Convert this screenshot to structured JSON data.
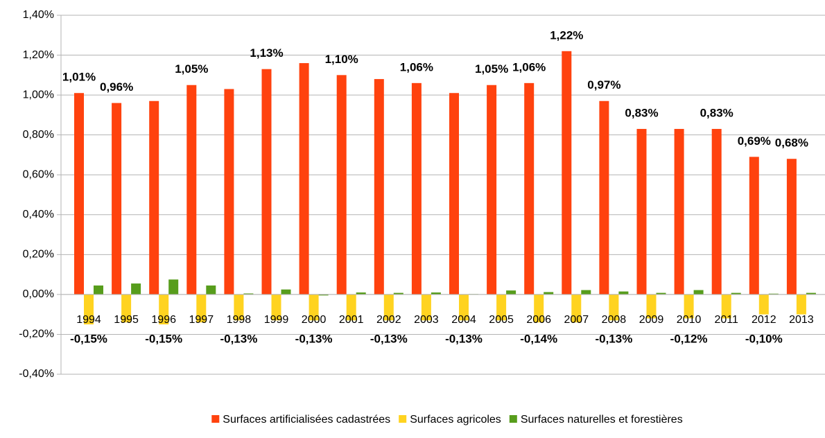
{
  "chart_data": {
    "type": "bar",
    "categories": [
      "1994",
      "1995",
      "1996",
      "1997",
      "1998",
      "1999",
      "2000",
      "2001",
      "2002",
      "2003",
      "2004",
      "2005",
      "2006",
      "2007",
      "2008",
      "2009",
      "2010",
      "2011",
      "2012",
      "2013"
    ],
    "series": [
      {
        "name": "Surfaces artificialisées cadastrées",
        "color": "#ff420e",
        "values": [
          1.01,
          0.96,
          0.97,
          1.05,
          1.03,
          1.13,
          1.16,
          1.1,
          1.08,
          1.06,
          1.01,
          1.05,
          1.06,
          1.22,
          0.97,
          0.83,
          0.83,
          0.83,
          0.69,
          0.68
        ],
        "value_labels": [
          "1,01%",
          "0,96%",
          null,
          "1,05%",
          null,
          "1,13%",
          null,
          "1,10%",
          null,
          "1,06%",
          null,
          "1,05%",
          "1,06%",
          "1,22%",
          "0,97%",
          "0,83%",
          null,
          "0,83%",
          "0,69%",
          "0,68%"
        ]
      },
      {
        "name": "Surfaces agricoles",
        "color": "#ffd320",
        "values": [
          -0.15,
          -0.14,
          -0.15,
          -0.14,
          -0.13,
          -0.13,
          -0.13,
          -0.13,
          -0.13,
          -0.13,
          -0.13,
          -0.13,
          -0.14,
          -0.14,
          -0.13,
          -0.12,
          -0.12,
          -0.12,
          -0.1,
          -0.1
        ],
        "value_labels": [
          "-0,15%",
          null,
          "-0,15%",
          null,
          "-0,13%",
          null,
          "-0,13%",
          null,
          "-0,13%",
          null,
          "-0,13%",
          null,
          "-0,14%",
          null,
          "-0,13%",
          null,
          "-0,12%",
          null,
          "-0,10%",
          null
        ]
      },
      {
        "name": "Surfaces naturelles et forestières",
        "color": "#579d1c",
        "values": [
          0.045,
          0.055,
          0.075,
          0.045,
          0.005,
          0.025,
          -0.005,
          0.01,
          0.008,
          0.01,
          0.002,
          0.02,
          0.012,
          0.022,
          0.015,
          0.008,
          0.022,
          0.008,
          0.004,
          0.008
        ]
      }
    ],
    "ylim": [
      -0.4,
      1.4
    ],
    "yticks": [
      {
        "value": -0.4,
        "label": "-0,40%"
      },
      {
        "value": -0.2,
        "label": "-0,20%"
      },
      {
        "value": 0,
        "label": "0,00%"
      },
      {
        "value": 0.2,
        "label": "0,20%"
      },
      {
        "value": 0.4,
        "label": "0,40%"
      },
      {
        "value": 0.6,
        "label": "0,60%"
      },
      {
        "value": 0.8,
        "label": "0,80%"
      },
      {
        "value": 1.0,
        "label": "1,00%"
      },
      {
        "value": 1.2,
        "label": "1,20%"
      },
      {
        "value": 1.4,
        "label": "1,40%"
      }
    ],
    "grid": true,
    "legend": "bottom"
  }
}
